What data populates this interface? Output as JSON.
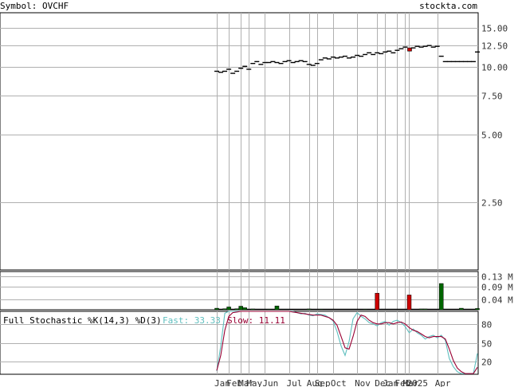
{
  "header": {
    "symbol_label": "Symbol: OVCHF",
    "brand": "stockta.com"
  },
  "stochastic": {
    "title": "Full Stochastic %K(14,3) %D(3)",
    "fast_label": "Fast: 33.33",
    "slow_label": "Slow: 11.11"
  },
  "colors": {
    "frame": "#000000",
    "grid": "#b0b0b0",
    "text": "#333333",
    "brand": "#555555",
    "fast": "#5fbfbf",
    "slow": "#990033",
    "vol_up": "#006600",
    "vol_down": "#cc0000"
  },
  "chart_data": [
    {
      "type": "candlestick",
      "name": "price",
      "scale": "log",
      "ylim": [
        1.25,
        17.5
      ],
      "yticks": [
        "15.00",
        "12.50",
        "10.00",
        "7.50",
        "5.00",
        "2.50"
      ],
      "ytick_values": [
        15,
        12.5,
        10,
        7.5,
        5,
        2.5
      ],
      "x_labels": [
        "Jan",
        "Feb",
        "Mar",
        "May",
        "Jun",
        "Jul",
        "Aug",
        "Sep",
        "Oct",
        "Nov",
        "Dec",
        "Jan",
        "Feb",
        "Mar",
        "2025",
        "Apr"
      ],
      "x_index": [
        0,
        3,
        6,
        8,
        12,
        18,
        23,
        25,
        29,
        35,
        40,
        42,
        45,
        47,
        48,
        55
      ],
      "x_count": 66,
      "closes": [
        9.6,
        9.5,
        9.6,
        9.8,
        9.4,
        9.6,
        9.9,
        10.1,
        9.8,
        10.4,
        10.6,
        10.3,
        10.5,
        10.5,
        10.6,
        10.5,
        10.4,
        10.6,
        10.7,
        10.5,
        10.6,
        10.7,
        10.6,
        10.3,
        10.2,
        10.4,
        10.8,
        11.0,
        10.9,
        11.1,
        11.0,
        11.1,
        11.2,
        11.0,
        11.1,
        11.3,
        11.2,
        11.4,
        11.6,
        11.4,
        11.6,
        11.5,
        11.7,
        11.8,
        11.6,
        11.9,
        12.1,
        12.3,
        12.0,
        12.2,
        12.4,
        12.3,
        12.4,
        12.5,
        12.3,
        12.4,
        11.2,
        10.6,
        10.6,
        10.6,
        10.6,
        10.6,
        10.6,
        10.6,
        10.6,
        11.7
      ],
      "down_index": [
        48
      ]
    },
    {
      "type": "bar",
      "name": "volume",
      "ylim": [
        0,
        0.15
      ],
      "yticks": [
        "0.13 M",
        "0.09 M",
        "0.04 M"
      ],
      "ytick_values": [
        0.13,
        0.09,
        0.04
      ],
      "values": [
        0.006,
        0,
        0.004,
        0.011,
        0,
        0.004,
        0.014,
        0.008,
        0,
        0.003,
        0,
        0,
        0,
        0.002,
        0,
        0.015,
        0,
        0,
        0,
        0,
        0,
        0,
        0,
        0.003,
        0,
        0,
        0.002,
        0,
        0,
        0,
        0,
        0,
        0,
        0,
        0,
        0,
        0,
        0.002,
        0,
        0,
        0.065,
        0,
        0,
        0,
        0,
        0,
        0,
        0,
        0.058,
        0,
        0,
        0.003,
        0.003,
        0,
        0,
        0,
        0.103,
        0,
        0,
        0,
        0,
        0.006,
        0,
        0,
        0,
        0.005
      ],
      "down_index": [
        40,
        48
      ]
    },
    {
      "type": "line",
      "name": "stochastic",
      "ylim": [
        0,
        100
      ],
      "yticks": [
        "80",
        "50",
        "20"
      ],
      "ytick_values": [
        80,
        50,
        20
      ],
      "series": [
        {
          "name": "Fast",
          "values": [
            5,
            45,
            97,
            100,
            100,
            100,
            100,
            100,
            100,
            100,
            100,
            100,
            100,
            100,
            100,
            100,
            100,
            100,
            100,
            100,
            98,
            96,
            97,
            94,
            93,
            96,
            95,
            94,
            90,
            85,
            68,
            45,
            30,
            52,
            88,
            98,
            92,
            88,
            82,
            80,
            77,
            82,
            84,
            78,
            84,
            86,
            82,
            76,
            66,
            72,
            66,
            62,
            56,
            60,
            62,
            58,
            62,
            54,
            25,
            12,
            4,
            1,
            1,
            1,
            1,
            33
          ]
        },
        {
          "name": "Slow",
          "values": [
            6,
            30,
            70,
            92,
            98,
            99,
            100,
            100,
            100,
            100,
            100,
            100,
            100,
            100,
            100,
            100,
            100,
            100,
            100,
            99,
            98,
            97,
            96,
            95,
            94,
            94,
            94,
            92,
            90,
            86,
            78,
            60,
            42,
            40,
            60,
            84,
            94,
            92,
            86,
            82,
            80,
            80,
            82,
            82,
            80,
            82,
            83,
            80,
            74,
            70,
            68,
            64,
            60,
            58,
            60,
            60,
            60,
            56,
            40,
            22,
            10,
            4,
            1,
            1,
            1,
            11
          ]
        }
      ]
    }
  ]
}
